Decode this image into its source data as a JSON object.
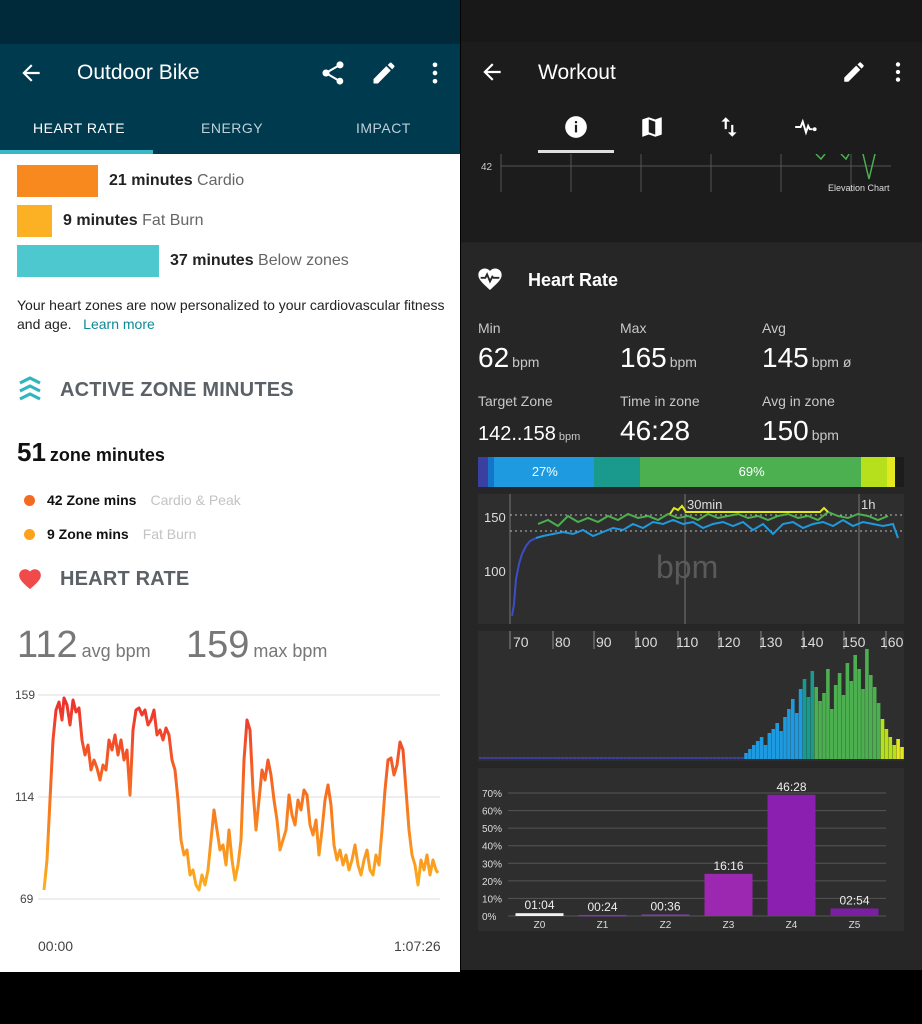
{
  "left": {
    "header": {
      "title": "Outdoor Bike"
    },
    "tabs": [
      {
        "label": "HEART RATE"
      },
      {
        "label": "ENERGY"
      },
      {
        "label": "IMPACT"
      }
    ],
    "zones": [
      {
        "value": "21 minutes",
        "label": "Cardio",
        "minutes": 21,
        "color": "#f7891f"
      },
      {
        "value": "9 minutes",
        "label": "Fat Burn",
        "minutes": 9,
        "color": "#fbb123"
      },
      {
        "value": "37 minutes",
        "label": "Below zones",
        "minutes": 37,
        "color": "#4dc8cf"
      }
    ],
    "info_text": "Your heart zones are now personalized to your cardiovascular fitness and age.",
    "learn_more": "Learn more",
    "active_zone": {
      "heading": "ACTIVE ZONE MINUTES",
      "total": "51",
      "total_label": "zone minutes",
      "items": [
        {
          "value": "42 Zone mins",
          "label": "Cardio & Peak",
          "color": "#f36b21"
        },
        {
          "value": "9 Zone mins",
          "label": "Fat Burn",
          "color": "#fba21f"
        }
      ]
    },
    "heart_rate": {
      "heading": "HEART RATE",
      "avg": "112",
      "avg_unit": "avg bpm",
      "max": "159",
      "max_unit": "max bpm",
      "chart": {
        "y_ticks": [
          "159",
          "114",
          "69"
        ],
        "x_start": "00:00",
        "x_end": "1:07:26"
      }
    }
  },
  "right": {
    "header": {
      "title": "Workout"
    },
    "elevation": {
      "tick": "42",
      "label": "Elevation Chart"
    },
    "heart_rate": {
      "title": "Heart Rate",
      "stats": [
        {
          "label": "Min",
          "value": "62",
          "unit": "bpm"
        },
        {
          "label": "Max",
          "value": "165",
          "unit": "bpm"
        },
        {
          "label": "Avg",
          "value": "145",
          "unit": "bpm ø"
        },
        {
          "label": "Target Zone",
          "value": "142..158",
          "unit": "bpm"
        },
        {
          "label": "Time in zone",
          "value": "46:28",
          "unit": ""
        },
        {
          "label": "Avg in zone",
          "value": "150",
          "unit": "bpm"
        }
      ],
      "zone_strip": {
        "segments": [
          {
            "color": "#3a3fa0",
            "fraction": 0.023
          },
          {
            "color": "#1476c8",
            "fraction": 0.014
          },
          {
            "color": "#1e9ae0",
            "fraction": 0.235,
            "label": "27%"
          },
          {
            "color": "#1a9a8c",
            "fraction": 0.108
          },
          {
            "color": "#4caf50",
            "fraction": 0.52,
            "label": "69%"
          },
          {
            "color": "#b6e01c",
            "fraction": 0.06
          },
          {
            "color": "#e4e81f",
            "fraction": 0.02
          },
          {
            "color": "#1c1c1c",
            "fraction": 0.02
          }
        ]
      },
      "line_chart": {
        "y_ticks": [
          "150",
          "100"
        ],
        "x_ticks": [
          "30min",
          "1h"
        ],
        "watermark": "bpm"
      },
      "histogram": {
        "x_ticks": [
          "70",
          "80",
          "90",
          "100",
          "110",
          "120",
          "130",
          "140",
          "150",
          "160"
        ]
      },
      "zone_bars": {
        "y_ticks": [
          "70%",
          "60%",
          "50%",
          "40%",
          "30%",
          "20%",
          "10%",
          "0%"
        ],
        "bars": [
          {
            "zone": "Z0",
            "label": "01:04",
            "percent": 1.6,
            "color": "#f2f2f2"
          },
          {
            "zone": "Z1",
            "label": "00:24",
            "percent": 0.6,
            "color": "#7a3ea1"
          },
          {
            "zone": "Z2",
            "label": "00:36",
            "percent": 0.9,
            "color": "#7a3ea1"
          },
          {
            "zone": "Z3",
            "label": "16:16",
            "percent": 24,
            "color": "#9c27b0"
          },
          {
            "zone": "Z4",
            "label": "46:28",
            "percent": 69,
            "color": "#8a1fb0"
          },
          {
            "zone": "Z5",
            "label": "02:54",
            "percent": 4.3,
            "color": "#7b1fa2"
          }
        ]
      }
    }
  }
}
